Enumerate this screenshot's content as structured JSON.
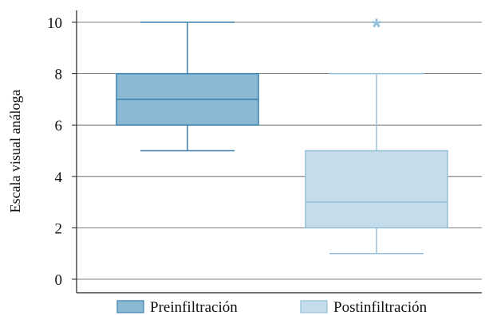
{
  "chart_data": {
    "type": "boxplot",
    "ylabel": "Escala visual análoga",
    "xlabel": "",
    "ylim": [
      0,
      10
    ],
    "yticks": [
      0,
      2,
      4,
      6,
      8,
      10
    ],
    "grid": "horizontal",
    "legend_position": "bottom",
    "series": [
      {
        "name": "Preinfiltración",
        "min": 5,
        "q1": 6,
        "median": 7,
        "q3": 8,
        "max": 10,
        "outliers": [],
        "fill": "#8ab9d4",
        "stroke": "#3a80ad"
      },
      {
        "name": "Postinfiltración",
        "min": 1,
        "q1": 2,
        "median": 3,
        "q3": 5,
        "max": 8,
        "outliers": [
          10
        ],
        "outlier_marker": "*",
        "fill": "#c5dcea",
        "stroke": "#93bfd8"
      }
    ]
  }
}
